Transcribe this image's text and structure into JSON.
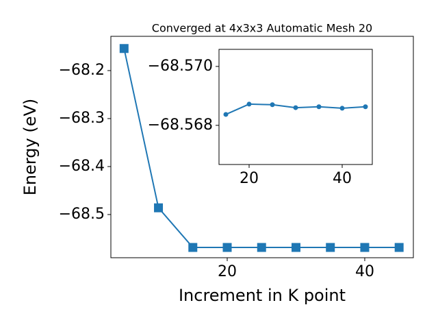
{
  "chart_data": [
    {
      "type": "line",
      "title": "Converged at 4x3x3 Automatic Mesh 20",
      "xlabel": "Increment in K point",
      "ylabel": "Energy (eV)",
      "x": [
        5,
        10,
        15,
        20,
        25,
        30,
        35,
        40,
        45
      ],
      "values": [
        -68.154,
        -68.486,
        -68.5686,
        -68.5686,
        -68.5686,
        -68.5686,
        -68.5686,
        -68.5686,
        -68.5686
      ],
      "color": "#1f77b4",
      "marker": "square",
      "xlim": [
        3.08,
        47.07
      ],
      "ylim": [
        -68.59,
        -68.1286
      ],
      "xticks": [
        20,
        40
      ],
      "yticks": [
        {
          "value": -68.5,
          "label": "−68.5"
        },
        {
          "value": -68.4,
          "label": "−68.4"
        },
        {
          "value": -68.3,
          "label": "−68.3"
        },
        {
          "value": -68.2,
          "label": "−68.2"
        }
      ]
    },
    {
      "type": "line",
      "x": [
        15,
        20,
        25,
        30,
        35,
        40,
        45
      ],
      "values": [
        -68.56837,
        -68.56872,
        -68.5687,
        -68.5686,
        -68.56863,
        -68.56858,
        -68.56863
      ],
      "color": "#1f77b4",
      "marker": "circle",
      "xlim": [
        13.53,
        46.47
      ],
      "ylim": [
        -68.56667,
        -68.57058
      ],
      "xticks": [
        20,
        40
      ],
      "yticks": [
        {
          "value": -68.57,
          "label": "−68.570"
        },
        {
          "value": -68.568,
          "label": "−68.568"
        }
      ]
    }
  ]
}
